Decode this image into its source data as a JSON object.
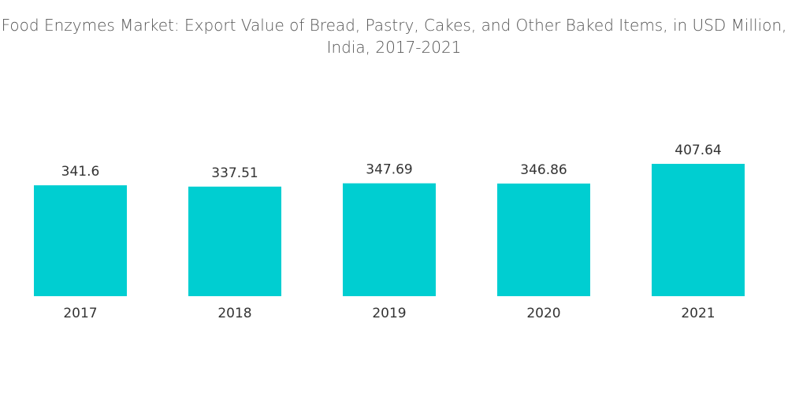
{
  "chart_data": {
    "type": "bar",
    "title": "Food Enzymes Market: Export Value of Bread, Pastry, Cakes, and Other Baked Items, in USD Million, India, 2017-2021",
    "categories": [
      "2017",
      "2018",
      "2019",
      "2020",
      "2021"
    ],
    "values": [
      341.6,
      337.51,
      347.69,
      346.86,
      407.64
    ],
    "color": "#00ced1"
  }
}
